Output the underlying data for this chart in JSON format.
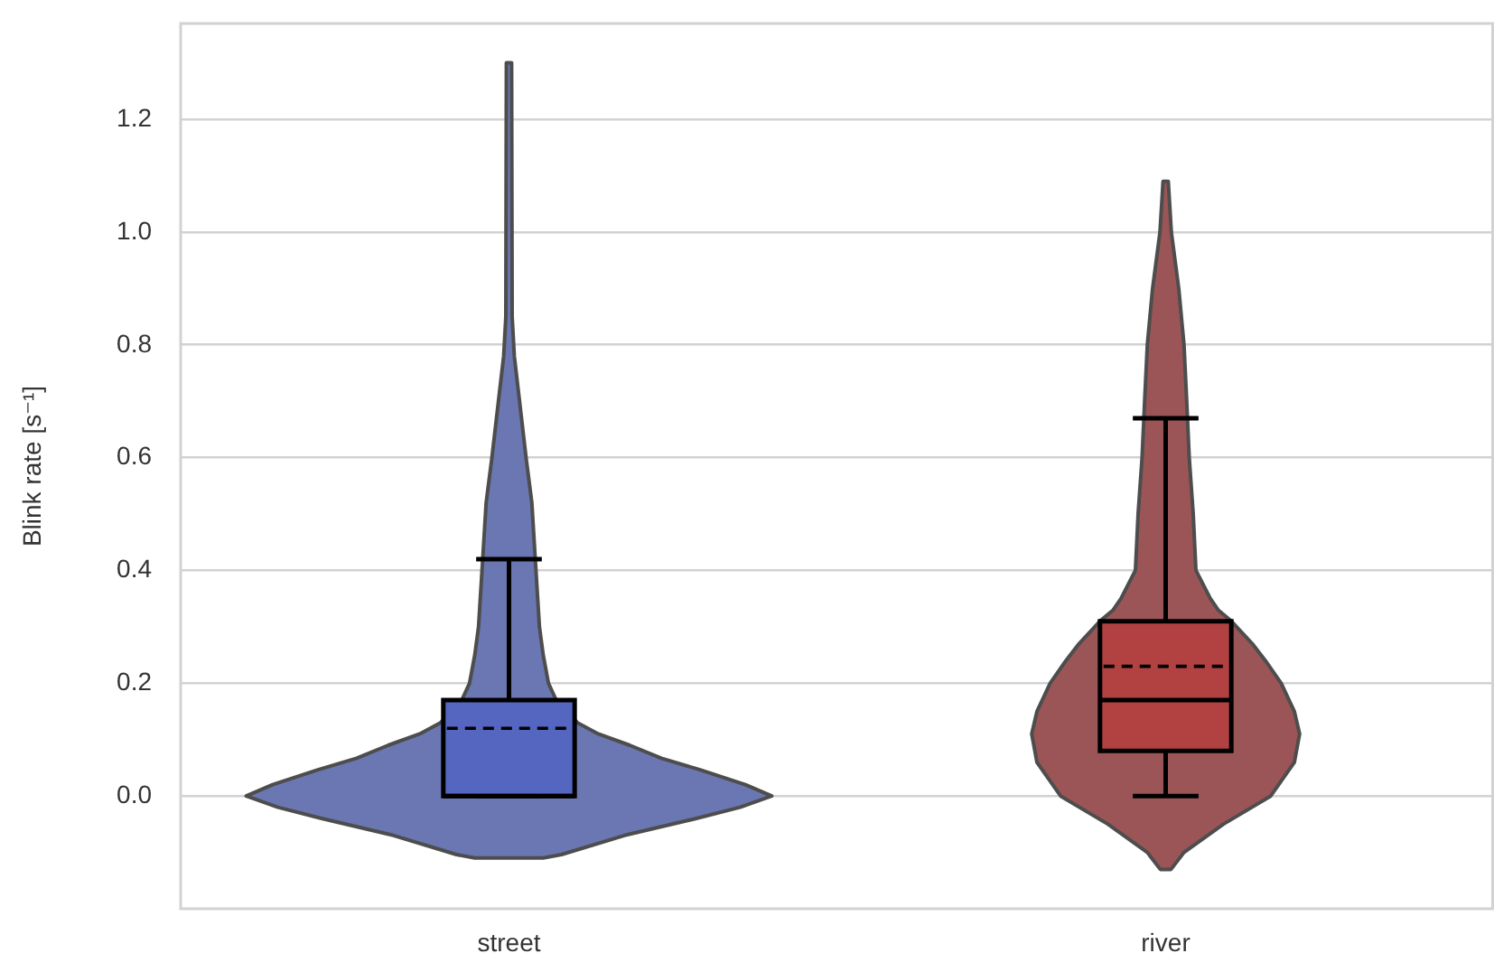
{
  "chart_data": {
    "type": "box",
    "ylabel": "Blink rate [s⁻¹]",
    "categories": [
      "street",
      "river"
    ],
    "boxes": [
      {
        "low": 0,
        "q1": 0,
        "median": 0,
        "q3": 0.17,
        "high": 0.42,
        "mean": 0.12
      },
      {
        "low": 0,
        "q1": 0.08,
        "median": 0.17,
        "q3": 0.31,
        "high": 0.67,
        "mean": 0.23
      }
    ],
    "colors": [
      "#5566c0",
      "#b24142"
    ],
    "ylim": [
      -0.2,
      1.37
    ],
    "yticks": [
      {
        "value": 0,
        "label": "0.0"
      },
      0.2,
      0.4,
      0.6,
      0.8,
      {
        "value": 1,
        "label": "1.0"
      },
      1.2
    ],
    "grid": "y",
    "legend": false
  }
}
